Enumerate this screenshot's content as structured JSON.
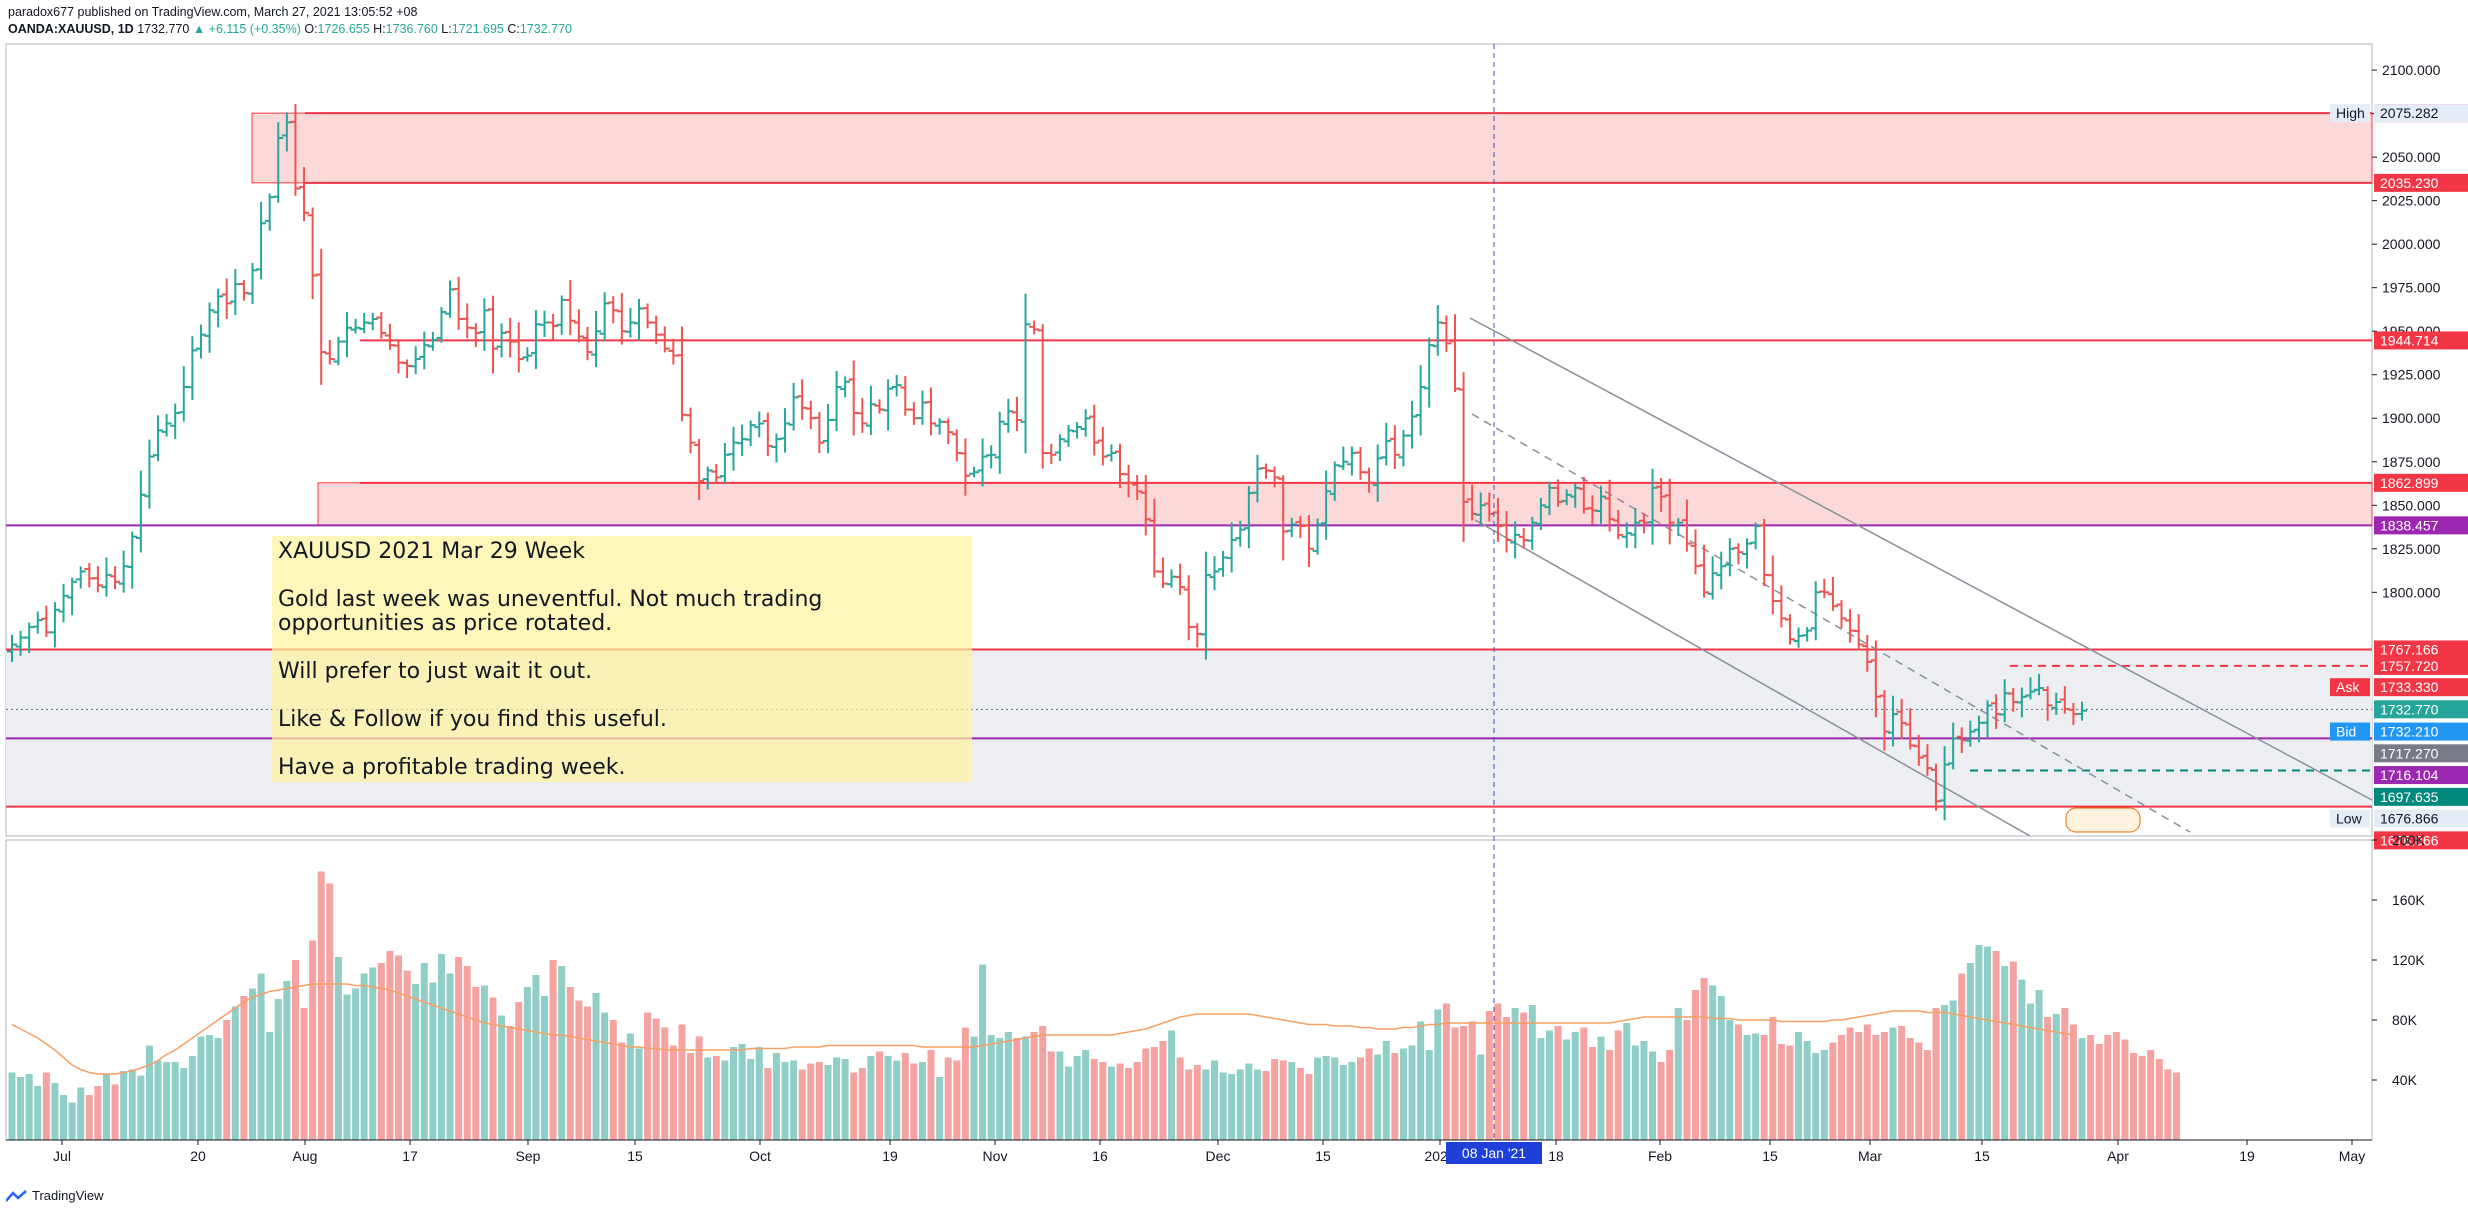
{
  "header": {
    "publisher": "paradox677 published on TradingView.com, March 27, 2021 13:05:52 +08",
    "symbol": "OANDA:XAUUSD, 1D",
    "last": "1732.770",
    "change": "▲ +6.115 (+0.35%)",
    "open_label": "O:",
    "open": "1726.655",
    "high_label": "H:",
    "high": "1736.760",
    "low_label": "L:",
    "low": "1721.695",
    "close_label": "C:",
    "close": "1732.770"
  },
  "note": {
    "title": "XAUUSD 2021 Mar 29 Week",
    "lines": [
      "Gold last week was uneventful. Not much trading opportunities as price rotated.",
      "Will prefer to just wait it out.",
      "Like & Follow if you find this useful.",
      "Have a profitable trading week."
    ]
  },
  "footer": {
    "brand": "TradingView"
  },
  "colors": {
    "up": "#26a69a",
    "down": "#ef5350",
    "zone": "#fcd9d9",
    "level": "#f23645",
    "purple": "#9c27b0",
    "band": "#eceef2",
    "channel": "#8a8f99",
    "volUp": "#8fcfc8",
    "volDown": "#f5a3a1",
    "ma": "#f7a063"
  },
  "chart_data": [
    {
      "type": "ohlc",
      "title": "OANDA:XAUUSD, 1D",
      "ylim": [
        1660,
        2115
      ],
      "y_ticks": [
        "2100.000",
        "2075.000",
        "2050.000",
        "2025.000",
        "2000.000",
        "1975.000",
        "1950.000",
        "1925.000",
        "1900.000",
        "1875.000",
        "1850.000",
        "1825.000",
        "1800.000"
      ],
      "x_ticks": [
        "Jul",
        "20",
        "Aug",
        "17",
        "Sep",
        "15",
        "Oct",
        "19",
        "Nov",
        "16",
        "Dec",
        "15",
        "2021",
        "18",
        "Feb",
        "15",
        "Mar",
        "15",
        "Apr",
        "19",
        "May"
      ],
      "crosshair_label": "08 Jan '21",
      "level_tags": [
        {
          "label": "",
          "value": "2075.282",
          "price": 2075.282,
          "color": "#f23645"
        },
        {
          "label": "High",
          "value": "2075.282",
          "price": 2075.282,
          "color": "#e4ecf5"
        },
        {
          "label": "",
          "value": "2035.230",
          "price": 2035.23,
          "color": "#f23645"
        },
        {
          "label": "",
          "value": "1944.714",
          "price": 1944.714,
          "color": "#f23645"
        },
        {
          "label": "",
          "value": "1862.899",
          "price": 1862.899,
          "color": "#f23645"
        },
        {
          "label": "",
          "value": "1838.457",
          "price": 1838.457,
          "color": "#9c27b0"
        },
        {
          "label": "",
          "value": "1767.166",
          "price": 1767.166,
          "color": "#f23645"
        },
        {
          "label": "",
          "value": "1757.720",
          "price": 1757.72,
          "color": "#f23645"
        },
        {
          "label": "Ask",
          "value": "1733.330",
          "price": 1745.5,
          "color": "#f23645"
        },
        {
          "label": "",
          "value": "1732.770",
          "price": 1732.77,
          "color": "#26a69a"
        },
        {
          "label": "Bid",
          "value": "1732.210",
          "price": 1720.0,
          "color": "#2196f3"
        },
        {
          "label": "",
          "value": "1717.270",
          "price": 1707.5,
          "color": "#787b86"
        },
        {
          "label": "",
          "value": "1716.104",
          "price": 1695.0,
          "color": "#9c27b0"
        },
        {
          "label": "",
          "value": "1697.635",
          "price": 1682.5,
          "color": "#00897b"
        },
        {
          "label": "Low",
          "value": "1676.866",
          "price": 1670.0,
          "color": "#e4ecf5"
        },
        {
          "label": "",
          "value": "1676.866",
          "price": 1657.5,
          "color": "#f23645"
        }
      ],
      "zones": [
        {
          "from": 2035.23,
          "to": 2075.282
        },
        {
          "from": 1838.457,
          "to": 1862.899
        }
      ],
      "horizontal_levels": [
        2075.282,
        2035.23,
        1944.714,
        1862.899,
        1838.457,
        1767.166,
        1716.104,
        1676.866
      ],
      "series": [
        {
          "name": "XAUUSD",
          "close": [
            1770,
            1774,
            1780,
            1784,
            1777,
            1790,
            1798,
            1806,
            1812,
            1808,
            1804,
            1810,
            1806,
            1815,
            1832,
            1856,
            1878,
            1893,
            1897,
            1903,
            1918,
            1939,
            1948,
            1962,
            1970,
            1966,
            1977,
            1972,
            1985,
            2012,
            2027,
            2061,
            2070,
            2032,
            2018,
            1982,
            1938,
            1934,
            1944,
            1952,
            1952,
            1955,
            1957,
            1949,
            1942,
            1932,
            1930,
            1934,
            1942,
            1945,
            1961,
            1974,
            1957,
            1952,
            1949,
            1962,
            1940,
            1949,
            1944,
            1934,
            1936,
            1954,
            1955,
            1953,
            1968,
            1956,
            1947,
            1938,
            1950,
            1966,
            1962,
            1950,
            1955,
            1963,
            1955,
            1948,
            1940,
            1936,
            1902,
            1886,
            1864,
            1870,
            1866,
            1879,
            1886,
            1888,
            1896,
            1897,
            1884,
            1888,
            1897,
            1912,
            1906,
            1900,
            1886,
            1899,
            1918,
            1921,
            1903,
            1897,
            1908,
            1905,
            1917,
            1919,
            1905,
            1900,
            1909,
            1897,
            1898,
            1892,
            1880,
            1867,
            1869,
            1878,
            1879,
            1898,
            1904,
            1899,
            1954,
            1951,
            1880,
            1879,
            1888,
            1893,
            1895,
            1900,
            1886,
            1878,
            1880,
            1868,
            1863,
            1858,
            1842,
            1812,
            1805,
            1809,
            1803,
            1780,
            1776,
            1810,
            1812,
            1820,
            1830,
            1836,
            1857,
            1871,
            1870,
            1866,
            1835,
            1839,
            1838,
            1825,
            1839,
            1858,
            1873,
            1875,
            1880,
            1869,
            1863,
            1877,
            1887,
            1879,
            1890,
            1901,
            1918,
            1942,
            1955,
            1943,
            1917,
            1852,
            1845,
            1850,
            1845,
            1838,
            1830,
            1833,
            1830,
            1840,
            1850,
            1860,
            1852,
            1856,
            1860,
            1848,
            1847,
            1855,
            1842,
            1833,
            1834,
            1840,
            1840,
            1860,
            1855,
            1840,
            1840,
            1828,
            1815,
            1800,
            1811,
            1815,
            1825,
            1823,
            1828,
            1838,
            1810,
            1795,
            1785,
            1773,
            1775,
            1778,
            1800,
            1800,
            1792,
            1785,
            1778,
            1770,
            1760,
            1740,
            1720,
            1730,
            1725,
            1712,
            1705,
            1699,
            1680,
            1701,
            1716,
            1715,
            1720,
            1725,
            1735,
            1730,
            1742,
            1737,
            1740,
            1743,
            1745,
            1735,
            1737,
            1733,
            1730,
            1732
          ]
        }
      ]
    },
    {
      "type": "bar",
      "title": "Volume",
      "ylim": [
        0,
        200000
      ],
      "y_ticks": [
        "200K",
        "160K",
        "120K",
        "80K",
        "40K"
      ],
      "series": [
        {
          "name": "Volume",
          "values": [
            45000,
            42000,
            44000,
            36000,
            45000,
            38000,
            30000,
            25000,
            35000,
            30000,
            36000,
            44000,
            37000,
            46000,
            47000,
            43000,
            63000,
            53000,
            52000,
            52000,
            48000,
            56000,
            69000,
            70000,
            68000,
            80000,
            89000,
            96000,
            101000,
            111000,
            72000,
            94000,
            106000,
            120000,
            88000,
            133000,
            179000,
            171000,
            122000,
            97000,
            101000,
            111000,
            115000,
            118000,
            126000,
            123000,
            113000,
            104000,
            118000,
            105000,
            124000,
            111000,
            122000,
            116000,
            102000,
            103000,
            95000,
            83000,
            76000,
            92000,
            102000,
            110000,
            96000,
            120000,
            116000,
            102000,
            93000,
            89000,
            98000,
            85000,
            80000,
            65000,
            71000,
            61000,
            85000,
            81000,
            75000,
            63000,
            77000,
            58000,
            69000,
            55000,
            56000,
            53000,
            62000,
            64000,
            54000,
            62000,
            48000,
            58000,
            52000,
            53000,
            47000,
            51000,
            52000,
            50000,
            55000,
            54000,
            45000,
            48000,
            56000,
            59000,
            56000,
            53000,
            58000,
            51000,
            52000,
            60000,
            42000,
            55000,
            53000,
            75000,
            69000,
            117000,
            70000,
            68000,
            72000,
            68000,
            69000,
            72000,
            76000,
            59000,
            59000,
            49000,
            56000,
            60000,
            54000,
            52000,
            49000,
            51000,
            48000,
            52000,
            61000,
            62000,
            66000,
            73000,
            55000,
            47000,
            50000,
            47000,
            53000,
            45000,
            44000,
            47000,
            51000,
            47000,
            46000,
            54000,
            53000,
            52000,
            48000,
            44000,
            55000,
            56000,
            55000,
            50000,
            52000,
            55000,
            61000,
            57000,
            66000,
            58000,
            61000,
            63000,
            79000,
            60000,
            87000,
            91000,
            75000,
            76000,
            79000,
            57000,
            86000,
            91000,
            82000,
            88000,
            85000,
            90000,
            68000,
            73000,
            76000,
            67000,
            72000,
            75000,
            62000,
            69000,
            60000,
            73000,
            78000,
            63000,
            66000,
            59000,
            52000,
            60000,
            88000,
            80000,
            100000,
            108000,
            103000,
            96000,
            80000,
            77000,
            70000,
            71000,
            70000,
            82000,
            64000,
            63000,
            72000,
            66000,
            58000,
            60000,
            65000,
            70000,
            75000,
            72000,
            77000,
            70000,
            72000,
            75000,
            76000,
            68000,
            65000,
            60000,
            88000,
            90000,
            93000,
            111000,
            118000,
            130000,
            129000,
            126000,
            116000,
            119000,
            107000,
            91000,
            100000,
            82000,
            84000,
            88000,
            77000,
            68000,
            70000,
            64000,
            70000,
            72000,
            67000,
            58000,
            56000,
            60000,
            54000,
            47000,
            45000
          ]
        },
        {
          "name": "MA",
          "values": [
            77000,
            74000,
            71000,
            68000,
            64000,
            60000,
            55000,
            50000,
            47000,
            45000,
            44000,
            44000,
            44000,
            45000,
            46000,
            48000,
            50000,
            53000,
            57000,
            60000,
            64000,
            68000,
            72000,
            76000,
            80000,
            84000,
            88000,
            92000,
            95000,
            97000,
            99000,
            100000,
            101000,
            102000,
            103000,
            104000,
            104000,
            104000,
            104000,
            104000,
            103000,
            103000,
            102000,
            101000,
            100000,
            98000,
            96000,
            94000,
            92000,
            90000,
            88000,
            86000,
            84000,
            82000,
            80000,
            78000,
            77000,
            76000,
            75000,
            74000,
            73000,
            72000,
            71000,
            70000,
            70000,
            69000,
            68000,
            67000,
            66000,
            65000,
            64000,
            63000,
            62000,
            62000,
            61000,
            61000,
            60000,
            60000,
            60000,
            60000,
            60000,
            60000,
            60000,
            60000,
            60000,
            60000,
            61000,
            61000,
            61000,
            61000,
            61000,
            62000,
            62000,
            62000,
            62000,
            63000,
            63000,
            63000,
            63000,
            63000,
            63000,
            63000,
            63000,
            63000,
            63000,
            63000,
            62000,
            62000,
            62000,
            62000,
            62000,
            62000,
            62000,
            63000,
            64000,
            65000,
            66000,
            67000,
            68000,
            69000,
            70000,
            70000,
            70000,
            70000,
            70000,
            70000,
            70000,
            70000,
            70000,
            71000,
            72000,
            73000,
            74000,
            76000,
            78000,
            80000,
            82000,
            83000,
            84000,
            84000,
            84000,
            84000,
            84000,
            84000,
            84000,
            83000,
            82000,
            81000,
            80000,
            79000,
            78000,
            77000,
            77000,
            77000,
            76000,
            76000,
            76000,
            75000,
            75000,
            74000,
            74000,
            74000,
            75000,
            75000,
            76000,
            77000,
            77000,
            78000,
            78000,
            78000,
            78000,
            78000,
            78000,
            78000,
            78000,
            78000,
            78000,
            78000,
            78000,
            78000,
            78000,
            78000,
            78000,
            78000,
            78000,
            78000,
            78000,
            79000,
            80000,
            81000,
            82000,
            82000,
            82000,
            82000,
            82000,
            82000,
            82000,
            82000,
            81000,
            81000,
            81000,
            80000,
            80000,
            80000,
            80000,
            80000,
            79000,
            79000,
            79000,
            79000,
            79000,
            79000,
            80000,
            80000,
            81000,
            82000,
            83000,
            84000,
            85000,
            86000,
            86000,
            86000,
            86000,
            85000,
            85000,
            85000,
            84000,
            83000,
            82000,
            81000,
            80000,
            79000,
            78000,
            77000,
            76000,
            75000,
            74000,
            73000,
            72000,
            71000,
            70000
          ]
        }
      ]
    }
  ]
}
